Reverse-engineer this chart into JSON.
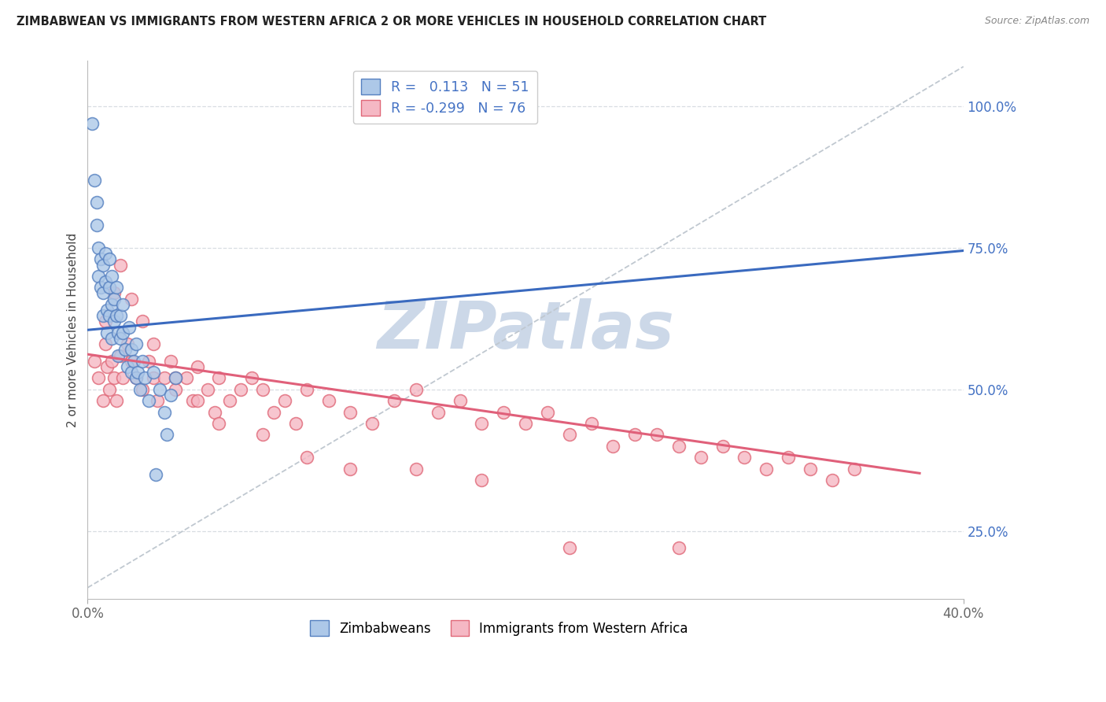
{
  "title": "ZIMBABWEAN VS IMMIGRANTS FROM WESTERN AFRICA 2 OR MORE VEHICLES IN HOUSEHOLD CORRELATION CHART",
  "source": "Source: ZipAtlas.com",
  "ylabel": "2 or more Vehicles in Household",
  "xlim": [
    0.0,
    0.4
  ],
  "ylim": [
    0.13,
    1.08
  ],
  "yticks_right": [
    0.25,
    0.5,
    0.75,
    1.0
  ],
  "yticklabels_right": [
    "25.0%",
    "50.0%",
    "75.0%",
    "100.0%"
  ],
  "blue_R": 0.113,
  "blue_N": 51,
  "pink_R": -0.299,
  "pink_N": 76,
  "blue_fill": "#adc8e8",
  "pink_fill": "#f5b8c4",
  "blue_edge": "#5580c0",
  "pink_edge": "#e06878",
  "blue_line": "#3a6abf",
  "pink_line": "#e0607a",
  "ref_line_color": "#c0c8d0",
  "grid_color": "#d8dde2",
  "watermark_color": "#ccd8e8",
  "legend_text_color": "#4472c4",
  "title_color": "#222222",
  "source_color": "#888888",
  "ylabel_color": "#444444",
  "tick_color": "#666666",
  "blue_scatter_x": [
    0.002,
    0.003,
    0.004,
    0.004,
    0.005,
    0.005,
    0.006,
    0.006,
    0.007,
    0.007,
    0.007,
    0.008,
    0.008,
    0.009,
    0.009,
    0.01,
    0.01,
    0.01,
    0.011,
    0.011,
    0.011,
    0.012,
    0.012,
    0.013,
    0.013,
    0.014,
    0.014,
    0.015,
    0.015,
    0.016,
    0.016,
    0.017,
    0.018,
    0.019,
    0.02,
    0.02,
    0.021,
    0.022,
    0.022,
    0.023,
    0.024,
    0.025,
    0.026,
    0.028,
    0.03,
    0.031,
    0.033,
    0.035,
    0.036,
    0.038,
    0.04
  ],
  "blue_scatter_y": [
    0.97,
    0.87,
    0.83,
    0.79,
    0.75,
    0.7,
    0.73,
    0.68,
    0.72,
    0.67,
    0.63,
    0.74,
    0.69,
    0.64,
    0.6,
    0.73,
    0.68,
    0.63,
    0.7,
    0.65,
    0.59,
    0.66,
    0.62,
    0.68,
    0.63,
    0.6,
    0.56,
    0.63,
    0.59,
    0.65,
    0.6,
    0.57,
    0.54,
    0.61,
    0.57,
    0.53,
    0.55,
    0.52,
    0.58,
    0.53,
    0.5,
    0.55,
    0.52,
    0.48,
    0.53,
    0.35,
    0.5,
    0.46,
    0.42,
    0.49,
    0.52
  ],
  "pink_scatter_x": [
    0.003,
    0.005,
    0.007,
    0.008,
    0.009,
    0.01,
    0.011,
    0.012,
    0.013,
    0.015,
    0.016,
    0.018,
    0.02,
    0.022,
    0.025,
    0.028,
    0.03,
    0.032,
    0.035,
    0.038,
    0.04,
    0.045,
    0.048,
    0.05,
    0.055,
    0.058,
    0.06,
    0.065,
    0.07,
    0.075,
    0.08,
    0.085,
    0.09,
    0.095,
    0.1,
    0.11,
    0.12,
    0.13,
    0.14,
    0.15,
    0.16,
    0.17,
    0.18,
    0.19,
    0.2,
    0.21,
    0.22,
    0.23,
    0.24,
    0.25,
    0.26,
    0.27,
    0.28,
    0.29,
    0.3,
    0.31,
    0.32,
    0.33,
    0.34,
    0.35,
    0.008,
    0.012,
    0.015,
    0.02,
    0.025,
    0.03,
    0.04,
    0.05,
    0.06,
    0.08,
    0.1,
    0.12,
    0.15,
    0.18,
    0.22,
    0.27
  ],
  "pink_scatter_y": [
    0.55,
    0.52,
    0.48,
    0.58,
    0.54,
    0.5,
    0.55,
    0.52,
    0.48,
    0.56,
    0.52,
    0.58,
    0.55,
    0.52,
    0.5,
    0.55,
    0.52,
    0.48,
    0.52,
    0.55,
    0.5,
    0.52,
    0.48,
    0.54,
    0.5,
    0.46,
    0.52,
    0.48,
    0.5,
    0.52,
    0.5,
    0.46,
    0.48,
    0.44,
    0.5,
    0.48,
    0.46,
    0.44,
    0.48,
    0.5,
    0.46,
    0.48,
    0.44,
    0.46,
    0.44,
    0.46,
    0.42,
    0.44,
    0.4,
    0.42,
    0.42,
    0.4,
    0.38,
    0.4,
    0.38,
    0.36,
    0.38,
    0.36,
    0.34,
    0.36,
    0.62,
    0.67,
    0.72,
    0.66,
    0.62,
    0.58,
    0.52,
    0.48,
    0.44,
    0.42,
    0.38,
    0.36,
    0.36,
    0.34,
    0.22,
    0.22
  ]
}
